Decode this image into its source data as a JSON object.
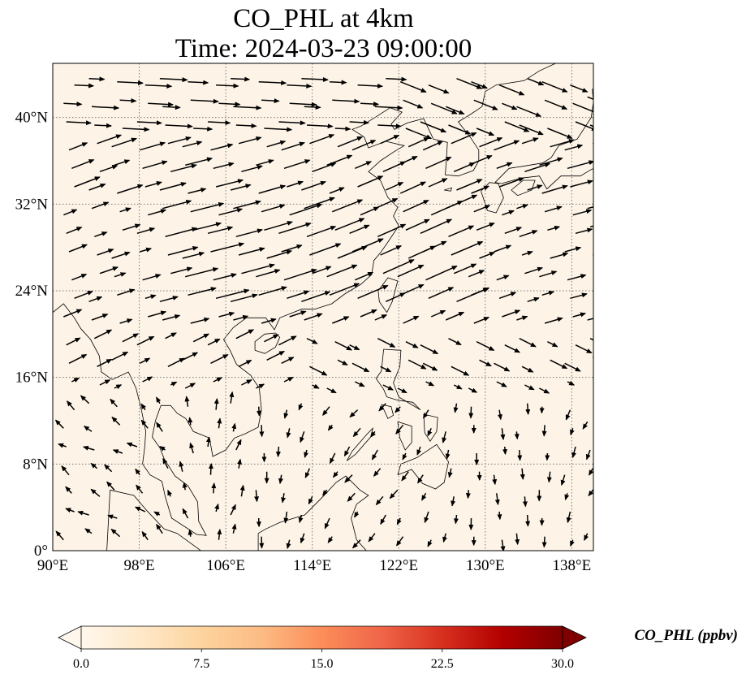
{
  "title": {
    "line1": "CO_PHL at 4km",
    "line2": "Time: 2024-03-23 09:00:00"
  },
  "map": {
    "lon_range": [
      90,
      140
    ],
    "lat_range": [
      0,
      45
    ],
    "lon_ticks": [
      {
        "value": 90,
        "label": "90°E"
      },
      {
        "value": 98,
        "label": "98°E"
      },
      {
        "value": 106,
        "label": "106°E"
      },
      {
        "value": 114,
        "label": "114°E"
      },
      {
        "value": 122,
        "label": "122°E"
      },
      {
        "value": 130,
        "label": "130°E"
      },
      {
        "value": 138,
        "label": "138°E"
      }
    ],
    "lat_ticks": [
      {
        "value": 0,
        "label": "0°"
      },
      {
        "value": 8,
        "label": "8°N"
      },
      {
        "value": 16,
        "label": "16°N"
      },
      {
        "value": 24,
        "label": "24°N"
      },
      {
        "value": 32,
        "label": "32°N"
      },
      {
        "value": 40,
        "label": "40°N"
      }
    ],
    "gridlines": true,
    "field_color": "#fdf4e7",
    "field_value_approx": 0.5,
    "wind_vectors": "yes"
  },
  "colorbar": {
    "label": "CO_PHL (ppbv)",
    "min": 0,
    "max": 30,
    "extend": "both",
    "colormap": "OrRd",
    "ticks": [
      {
        "value": 0,
        "label": "0.0"
      },
      {
        "value": 7.5,
        "label": "7.5"
      },
      {
        "value": 15,
        "label": "15.0"
      },
      {
        "value": 22.5,
        "label": "22.5"
      },
      {
        "value": 30,
        "label": "30.0"
      }
    ],
    "colors": [
      "#fff7ec",
      "#fee8c8",
      "#fdd49e",
      "#fdbb84",
      "#fc8d59",
      "#ef6548",
      "#d7301f",
      "#b30000",
      "#7f0000"
    ]
  }
}
